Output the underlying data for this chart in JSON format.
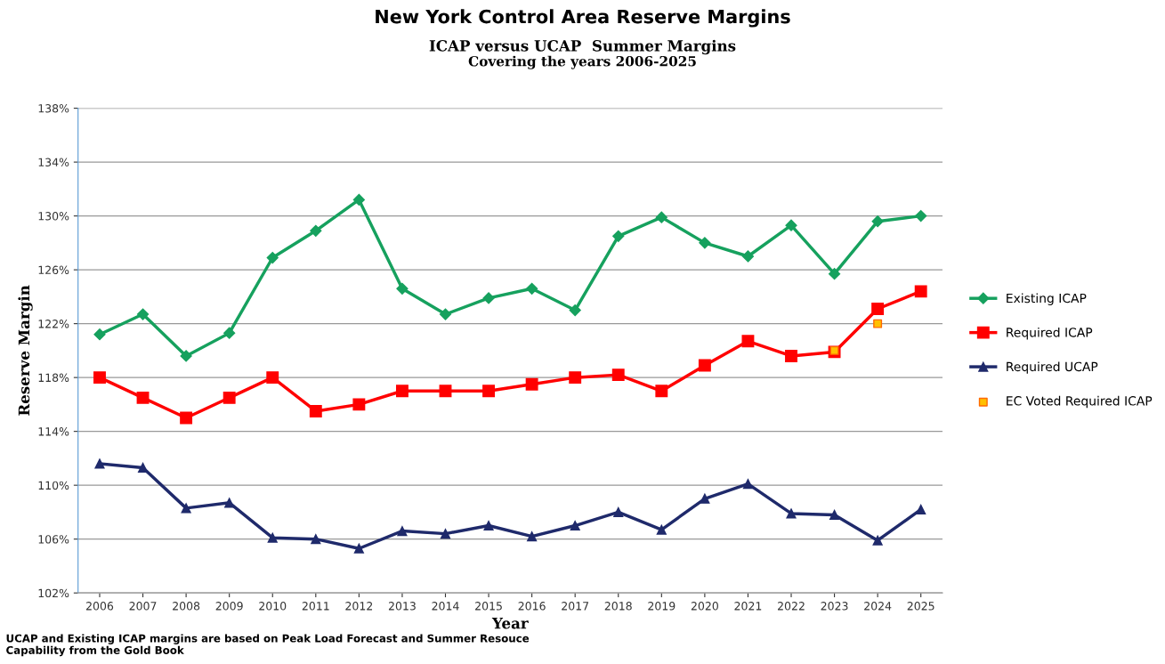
{
  "chart_data": {
    "type": "line",
    "title": "New York Control Area Reserve Margins",
    "subtitle": "ICAP versus UCAP  Summer Margins\nCovering the years 2006-2025",
    "xlabel": "Year",
    "ylabel": "Reserve Margin",
    "categories": [
      "2006",
      "2007",
      "2008",
      "2009",
      "2010",
      "2011",
      "2012",
      "2013",
      "2014",
      "2015",
      "2016",
      "2017",
      "2018",
      "2019",
      "2020",
      "2021",
      "2022",
      "2023",
      "2024",
      "2025"
    ],
    "series": [
      {
        "name": "Existing ICAP",
        "color": "#16a15e",
        "marker": "diamond",
        "values": [
          121.2,
          122.7,
          119.6,
          121.3,
          126.9,
          128.9,
          131.2,
          124.6,
          122.7,
          123.9,
          124.6,
          123.0,
          128.5,
          129.9,
          128.0,
          127.0,
          129.3,
          125.7,
          129.6,
          130.0
        ]
      },
      {
        "name": "Required ICAP",
        "color": "#ff0000",
        "marker": "square",
        "values": [
          118.0,
          116.5,
          115.0,
          116.5,
          118.0,
          115.5,
          116.0,
          117.0,
          117.0,
          117.0,
          117.5,
          118.0,
          118.2,
          117.0,
          118.9,
          120.7,
          119.6,
          119.9,
          123.1,
          124.4
        ]
      },
      {
        "name": "Required UCAP",
        "color": "#1f2a6b",
        "marker": "triangle",
        "values": [
          111.6,
          111.3,
          108.3,
          108.7,
          106.1,
          106.0,
          105.3,
          106.6,
          106.4,
          107.0,
          106.2,
          107.0,
          108.0,
          106.7,
          109.0,
          110.1,
          107.9,
          107.8,
          105.9,
          108.2
        ]
      },
      {
        "name": "EC Voted Required ICAP",
        "type": "scatter",
        "color": "#ffc000",
        "marker": "square",
        "values": [
          null,
          null,
          null,
          null,
          null,
          null,
          null,
          null,
          null,
          null,
          null,
          null,
          null,
          null,
          null,
          null,
          null,
          120.0,
          122.0,
          null
        ]
      }
    ],
    "ylim": [
      102,
      138
    ],
    "yticks": [
      {
        "value": 102,
        "label": "102%"
      },
      {
        "value": 106,
        "label": "106%"
      },
      {
        "value": 110,
        "label": "110%"
      },
      {
        "value": 114,
        "label": "114%"
      },
      {
        "value": 118,
        "label": "118%"
      },
      {
        "value": 122,
        "label": "122%"
      },
      {
        "value": 126,
        "label": "126%"
      },
      {
        "value": 130,
        "label": "130%"
      },
      {
        "value": 134,
        "label": "134%"
      },
      {
        "value": 138,
        "label": "138%"
      }
    ],
    "grid": "y",
    "legend": "right",
    "annotations": [
      "UCAP and Existing ICAP margins are based on Peak Load Forecast and Summer Resouce\nCapability from the Gold Book"
    ]
  }
}
